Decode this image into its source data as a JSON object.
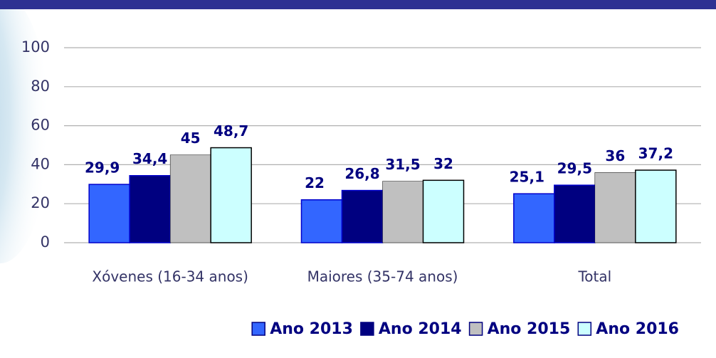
{
  "chart_data": {
    "type": "bar",
    "categories": [
      "Xóvenes (16-34 anos)",
      "Maiores (35-74 anos)",
      "Total"
    ],
    "series": [
      {
        "name": "Ano 2013",
        "color": "#3366ff",
        "values": [
          29.9,
          22,
          25.1
        ],
        "value_labels": [
          "29,9",
          "22",
          "25,1"
        ]
      },
      {
        "name": "Ano 2014",
        "color": "#000080",
        "values": [
          34.4,
          26.8,
          29.5
        ],
        "value_labels": [
          "34,4",
          "26,8",
          "29,5"
        ]
      },
      {
        "name": "Ano 2015",
        "color": "#c0c0c0",
        "values": [
          45,
          31.5,
          36
        ],
        "value_labels": [
          "45",
          "31,5",
          "36"
        ]
      },
      {
        "name": "Ano 2016",
        "color": "#ccffff",
        "values": [
          48.7,
          32,
          37.2
        ],
        "value_labels": [
          "48,7",
          "32",
          "37,2"
        ]
      }
    ],
    "ylim": [
      0,
      100
    ],
    "yticks": [
      0,
      20,
      40,
      60,
      80,
      100
    ],
    "grid": true,
    "legend": "bottom"
  }
}
